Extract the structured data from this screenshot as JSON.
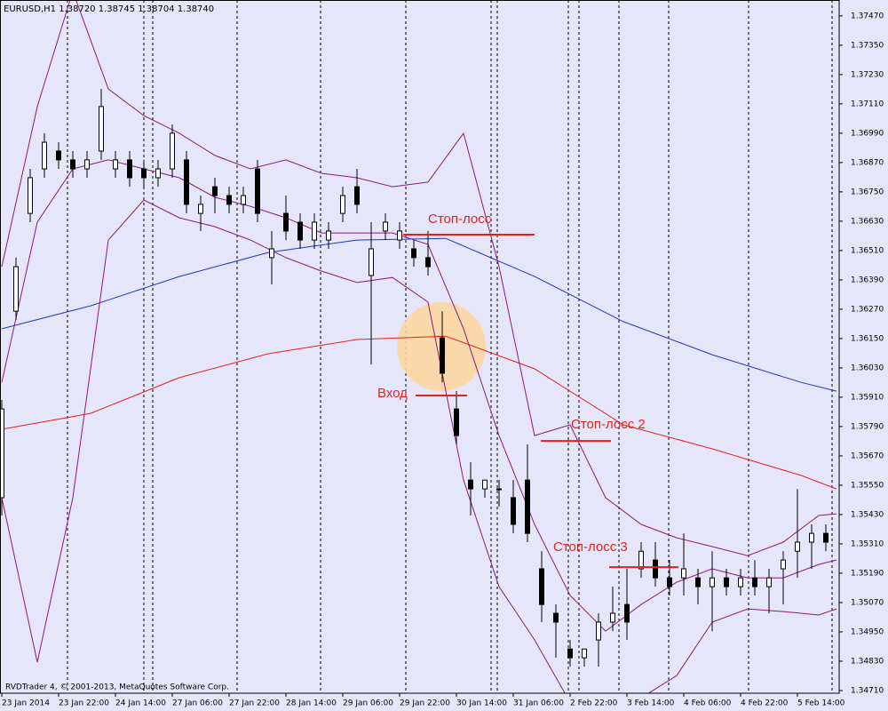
{
  "chart_data": {
    "type": "candlestick",
    "title": "EURUSD,H1  1.38720 1.38745 1.38704 1.38740",
    "footer": "RVDTrader 4, © 2001-2013, MetaQuotes Software Corp.",
    "up_color": "#ffffff",
    "down_color": "#000000",
    "x": [
      0,
      4,
      8,
      12,
      16,
      20,
      24,
      28,
      32,
      36,
      40,
      44,
      48,
      52,
      56,
      60,
      64,
      68,
      72,
      76,
      80,
      84,
      88,
      92,
      96,
      100,
      104,
      108,
      112,
      116,
      120,
      124,
      128,
      132,
      136,
      140,
      144,
      148,
      152,
      156,
      160,
      164,
      168,
      172,
      176,
      180,
      184,
      188,
      192,
      196,
      200,
      204,
      208,
      212,
      216,
      220,
      224,
      228,
      232
    ],
    "ohlc": [
      [
        1.35499,
        1.35899,
        1.35426,
        1.35862
      ],
      [
        1.36262,
        1.36481,
        1.36226,
        1.36444
      ],
      [
        1.36662,
        1.36844,
        1.36626,
        1.36808
      ],
      [
        1.36844,
        1.3699,
        1.36808,
        1.36953
      ],
      [
        1.36917,
        1.36953,
        1.36844,
        1.36881
      ],
      [
        1.36881,
        1.36917,
        1.36808,
        1.36844
      ],
      [
        1.36844,
        1.36917,
        1.36808,
        1.36881
      ],
      [
        1.36917,
        1.37171,
        1.36881,
        1.37099
      ],
      [
        1.36844,
        1.36917,
        1.36808,
        1.36881
      ],
      [
        1.36881,
        1.36917,
        1.36771,
        1.36808
      ],
      [
        1.36844,
        1.36881,
        1.36771,
        1.36808
      ],
      [
        1.36808,
        1.36881,
        1.36771,
        1.36844
      ],
      [
        1.36844,
        1.37026,
        1.36808,
        1.3699
      ],
      [
        1.36881,
        1.36917,
        1.36662,
        1.36699
      ],
      [
        1.36662,
        1.36735,
        1.3659,
        1.36699
      ],
      [
        1.36771,
        1.36808,
        1.36662,
        1.36735
      ],
      [
        1.36735,
        1.36771,
        1.36662,
        1.36699
      ],
      [
        1.36699,
        1.36771,
        1.36662,
        1.36735
      ],
      [
        1.36844,
        1.36881,
        1.36626,
        1.36662
      ],
      [
        1.36481,
        1.3659,
        1.36371,
        1.36517
      ],
      [
        1.36662,
        1.36735,
        1.36553,
        1.3659
      ],
      [
        1.36626,
        1.36662,
        1.36517,
        1.36553
      ],
      [
        1.36553,
        1.36662,
        1.36517,
        1.36626
      ],
      [
        1.36553,
        1.36626,
        1.36517,
        1.3659
      ],
      [
        1.36662,
        1.36771,
        1.36626,
        1.36735
      ],
      [
        1.36771,
        1.36844,
        1.36662,
        1.36699
      ],
      [
        1.36408,
        1.36626,
        1.36044,
        1.36517
      ],
      [
        1.3659,
        1.36662,
        1.36553,
        1.36626
      ],
      [
        1.36553,
        1.36626,
        1.36517,
        1.3659
      ],
      [
        1.36517,
        1.36553,
        1.36444,
        1.36481
      ],
      [
        1.36481,
        1.3659,
        1.36408,
        1.36444
      ],
      [
        1.36153,
        1.36262,
        1.35971,
        1.36008
      ],
      [
        1.35862,
        1.35935,
        1.35717,
        1.35753
      ],
      [
        1.35571,
        1.35644,
        1.35426,
        1.35535
      ],
      [
        1.35535,
        1.35571,
        1.35499,
        1.35571
      ],
      [
        1.35535,
        1.35571,
        1.35462,
        1.35535
      ],
      [
        1.35499,
        1.35571,
        1.35353,
        1.3539
      ],
      [
        1.35571,
        1.35717,
        1.35317,
        1.35353
      ],
      [
        1.35208,
        1.3528,
        1.3499,
        1.35062
      ],
      [
        1.35026,
        1.35062,
        1.34844,
        1.3499
      ],
      [
        1.3488,
        1.34917,
        1.34808,
        1.34844
      ],
      [
        1.34844,
        1.3488,
        1.34808,
        1.3488
      ],
      [
        1.34917,
        1.35026,
        1.34808,
        1.3499
      ],
      [
        1.3499,
        1.35135,
        1.34953,
        1.35026
      ],
      [
        1.35062,
        1.35208,
        1.34917,
        1.3499
      ],
      [
        1.35208,
        1.35317,
        1.35171,
        1.3528
      ],
      [
        1.35244,
        1.35317,
        1.35135,
        1.35171
      ],
      [
        1.35171,
        1.35244,
        1.35099,
        1.35135
      ],
      [
        1.35171,
        1.35353,
        1.35099,
        1.35208
      ],
      [
        1.35171,
        1.35208,
        1.35062,
        1.35135
      ],
      [
        1.35135,
        1.3528,
        1.34953,
        1.35171
      ],
      [
        1.35171,
        1.35208,
        1.35099,
        1.35135
      ],
      [
        1.35135,
        1.35208,
        1.35099,
        1.35171
      ],
      [
        1.35171,
        1.35244,
        1.35099,
        1.35135
      ],
      [
        1.35135,
        1.35208,
        1.35026,
        1.35171
      ],
      [
        1.35208,
        1.3528,
        1.35062,
        1.35244
      ],
      [
        1.3528,
        1.35535,
        1.35171,
        1.35317
      ],
      [
        1.35317,
        1.3539,
        1.35208,
        1.35353
      ],
      [
        1.35353,
        1.3539,
        1.3528,
        1.35317
      ]
    ],
    "lines": [
      {
        "color": "#1c36c8",
        "x": [
          0,
          25,
          50,
          75,
          100,
          125,
          150,
          175,
          200,
          225,
          235
        ],
        "values": [
          1.3619,
          1.36284,
          1.36404,
          1.36502,
          1.36553,
          1.3656,
          1.36404,
          1.36219,
          1.36084,
          1.35971,
          1.35935
        ]
      },
      {
        "color": "#e8201c",
        "x": [
          0,
          25,
          50,
          75,
          100,
          125,
          150,
          175,
          200,
          225,
          235
        ],
        "values": [
          1.35779,
          1.35844,
          1.3599,
          1.36088,
          1.36146,
          1.3616,
          1.36026,
          1.35797,
          1.35699,
          1.3559,
          1.35535
        ]
      },
      {
        "color": "#8b1a7a",
        "x": [
          0,
          10,
          20,
          30,
          40,
          50,
          60,
          70,
          80,
          90,
          100,
          110,
          120,
          130,
          140,
          150,
          160,
          170,
          180,
          190,
          200,
          210,
          220,
          230,
          235
        ],
        "values": [
          1.36444,
          1.37099,
          1.37571,
          1.37171,
          1.37062,
          1.3699,
          1.36899,
          1.36844,
          1.36881,
          1.36826,
          1.36808,
          1.36771,
          1.3679,
          1.3699,
          1.36444,
          1.35753,
          1.35797,
          1.35499,
          1.3539,
          1.35335,
          1.35299,
          1.35262,
          1.35317,
          1.35426,
          1.35433
        ]
      },
      {
        "color": "#8b1a7a",
        "x": [
          0,
          10,
          20,
          30,
          40,
          50,
          60,
          70,
          80,
          90,
          100,
          110,
          120,
          130,
          140,
          150,
          160,
          170,
          180,
          190,
          200,
          210,
          220,
          230,
          235
        ],
        "values": [
          1.35971,
          1.36626,
          1.36844,
          1.36881,
          1.36844,
          1.36808,
          1.36728,
          1.36691,
          1.36644,
          1.36582,
          1.36582,
          1.36582,
          1.36535,
          1.3619,
          1.35753,
          1.3539,
          1.35099,
          1.34953,
          1.35062,
          1.35153,
          1.35208,
          1.35171,
          1.35171,
          1.35226,
          1.35244
        ]
      },
      {
        "color": "#8b1a7a",
        "x": [
          0,
          10,
          20,
          30,
          40,
          50,
          60,
          70,
          80,
          90,
          100,
          110,
          120,
          130,
          140,
          150,
          160,
          170,
          180,
          190,
          200,
          210,
          220,
          230,
          235
        ],
        "values": [
          1.35499,
          1.34826,
          1.35499,
          1.36553,
          1.36717,
          1.36644,
          1.36608,
          1.36553,
          1.36481,
          1.36426,
          1.36379,
          1.364,
          1.36299,
          1.35571,
          1.35135,
          1.34917,
          1.34662,
          1.34662,
          1.3468,
          1.34771,
          1.3499,
          1.35044,
          1.35033,
          1.35019,
          1.35044
        ]
      }
    ],
    "annotations": [
      {
        "text": "Стоп-лосс",
        "value": 1.36575,
        "x": [
          113,
          150
        ],
        "color": "#e8201c"
      },
      {
        "text": "Вход",
        "value": 1.35917,
        "x": [
          116.5,
          131
        ],
        "color": "#e8201c"
      },
      {
        "text": "Стоп-лосс 2",
        "value": 1.35731,
        "x": [
          151.75,
          171.5
        ],
        "color": "#e8201c"
      },
      {
        "text": "Стоп-лосс 3",
        "value": 1.35215,
        "x": [
          171,
          190.5
        ],
        "color": "#e8201c"
      }
    ],
    "xlim": [
      -0.5,
      235.75
    ],
    "ylim": [
      1.34699,
      1.37535
    ],
    "xticks": [
      {
        "value": 0,
        "label": "23 Jan 2014"
      },
      {
        "value": 16,
        "label": "23 Jan 22:00"
      },
      {
        "value": 32,
        "label": "24 Jan 14:00"
      },
      {
        "value": 48,
        "label": "27 Jan 06:00"
      },
      {
        "value": 64,
        "label": "27 Jan 22:00"
      },
      {
        "value": 80,
        "label": "28 Jan 14:00"
      },
      {
        "value": 96,
        "label": "29 Jan 06:00"
      },
      {
        "value": 112,
        "label": "29 Jan 22:00"
      },
      {
        "value": 128,
        "label": "30 Jan 14:00"
      },
      {
        "value": 144,
        "label": "31 Jan 06:00"
      },
      {
        "value": 160,
        "label": "2 Feb 22:00"
      },
      {
        "value": 176,
        "label": "3 Feb 14:00"
      },
      {
        "value": 192,
        "label": "4 Feb 06:00"
      },
      {
        "value": 208,
        "label": "4 Feb 22:00"
      },
      {
        "value": 224,
        "label": "5 Feb 14:00"
      }
    ],
    "yticks": [
      {
        "value": 1.3747,
        "label": "1.37470"
      },
      {
        "value": 1.3735,
        "label": "1.37350"
      },
      {
        "value": 1.3723,
        "label": "1.37230"
      },
      {
        "value": 1.3711,
        "label": "1.37110"
      },
      {
        "value": 1.3699,
        "label": "1.36990"
      },
      {
        "value": 1.3687,
        "label": "1.36870"
      },
      {
        "value": 1.3675,
        "label": "1.36750"
      },
      {
        "value": 1.3663,
        "label": "1.36630"
      },
      {
        "value": 1.3651,
        "label": "1.36510"
      },
      {
        "value": 1.3639,
        "label": "1.36390"
      },
      {
        "value": 1.3627,
        "label": "1.36270"
      },
      {
        "value": 1.3615,
        "label": "1.36150"
      },
      {
        "value": 1.3603,
        "label": "1.36030"
      },
      {
        "value": 1.3591,
        "label": "1.35910"
      },
      {
        "value": 1.3579,
        "label": "1.35790"
      },
      {
        "value": 1.3567,
        "label": "1.35670"
      },
      {
        "value": 1.3555,
        "label": "1.35550"
      },
      {
        "value": 1.3543,
        "label": "1.35430"
      },
      {
        "value": 1.3531,
        "label": "1.35310"
      },
      {
        "value": 1.3519,
        "label": "1.35190"
      },
      {
        "value": 1.3507,
        "label": "1.35070"
      },
      {
        "value": 1.3495,
        "label": "1.34950"
      },
      {
        "value": 1.3483,
        "label": "1.34830"
      },
      {
        "value": 1.3471,
        "label": "1.34710"
      }
    ]
  }
}
